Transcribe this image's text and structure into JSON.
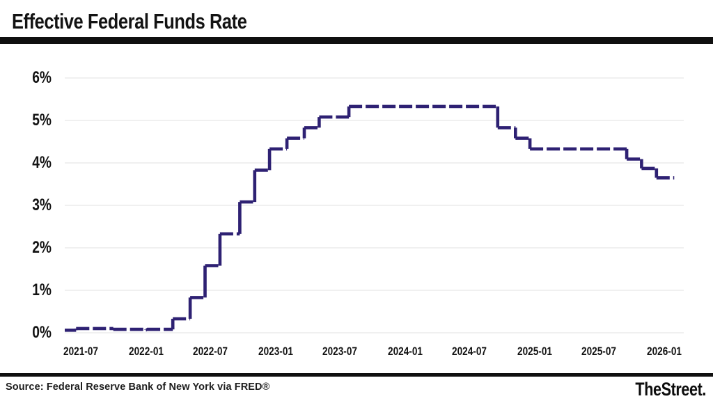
{
  "header": {
    "title": "Effective Federal Funds Rate"
  },
  "footer": {
    "source": "Source: Federal Reserve Bank of New York via FRED®",
    "brand": "TheStreet."
  },
  "chart_data": {
    "type": "line",
    "subtype": "step-after-dashed",
    "title": "Effective Federal Funds Rate",
    "xlabel": "",
    "ylabel": "",
    "grid": true,
    "legend": "none",
    "line_color": "#2e2173",
    "grid_color": "#e8e8e8",
    "ylim": [
      0,
      6
    ],
    "xlim": [
      "2021-05-16",
      "2026-02-26"
    ],
    "y_ticks": [
      {
        "value": 0,
        "label": "0%"
      },
      {
        "value": 1,
        "label": "1%"
      },
      {
        "value": 2,
        "label": "2%"
      },
      {
        "value": 3,
        "label": "3%"
      },
      {
        "value": 4,
        "label": "4%"
      },
      {
        "value": 5,
        "label": "5%"
      },
      {
        "value": 6,
        "label": "6%"
      }
    ],
    "x_ticks": [
      {
        "date": "2021-07-01",
        "label": "2021-07"
      },
      {
        "date": "2022-01-01",
        "label": "2022-01"
      },
      {
        "date": "2022-07-01",
        "label": "2022-07"
      },
      {
        "date": "2023-01-01",
        "label": "2023-01"
      },
      {
        "date": "2023-07-01",
        "label": "2023-07"
      },
      {
        "date": "2024-01-01",
        "label": "2024-01"
      },
      {
        "date": "2024-07-01",
        "label": "2024-07"
      },
      {
        "date": "2025-01-01",
        "label": "2025-01"
      },
      {
        "date": "2025-07-01",
        "label": "2025-07"
      },
      {
        "date": "2026-01-01",
        "label": "2026-01"
      }
    ],
    "series": [
      {
        "name": "Effective Federal Funds Rate (%)",
        "points": [
          {
            "date": "2021-05-16",
            "value": 0.06
          },
          {
            "date": "2021-06-17",
            "value": 0.1
          },
          {
            "date": "2021-09-30",
            "value": 0.08
          },
          {
            "date": "2021-12-31",
            "value": 0.07
          },
          {
            "date": "2022-01-03",
            "value": 0.08
          },
          {
            "date": "2022-03-17",
            "value": 0.33
          },
          {
            "date": "2022-05-05",
            "value": 0.83
          },
          {
            "date": "2022-06-16",
            "value": 1.58
          },
          {
            "date": "2022-07-28",
            "value": 2.33
          },
          {
            "date": "2022-09-22",
            "value": 3.08
          },
          {
            "date": "2022-11-03",
            "value": 3.83
          },
          {
            "date": "2022-12-15",
            "value": 4.33
          },
          {
            "date": "2023-02-02",
            "value": 4.58
          },
          {
            "date": "2023-03-23",
            "value": 4.83
          },
          {
            "date": "2023-05-04",
            "value": 5.08
          },
          {
            "date": "2023-07-27",
            "value": 5.33
          },
          {
            "date": "2024-09-19",
            "value": 4.83
          },
          {
            "date": "2024-11-08",
            "value": 4.58
          },
          {
            "date": "2024-12-19",
            "value": 4.33
          },
          {
            "date": "2025-09-18",
            "value": 4.09
          },
          {
            "date": "2025-10-30",
            "value": 3.87
          },
          {
            "date": "2025-12-11",
            "value": 3.65
          },
          {
            "date": "2026-01-30",
            "value": 3.65
          }
        ]
      }
    ]
  }
}
